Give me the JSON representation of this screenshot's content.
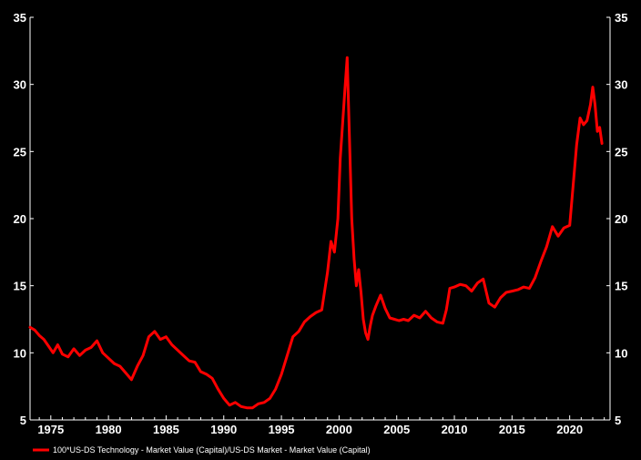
{
  "chart_data": {
    "type": "line",
    "title": "",
    "xlabel": "",
    "ylabel": "",
    "xlim": [
      1973.2,
      2023.5
    ],
    "ylim": [
      5,
      35
    ],
    "yticks": [
      5,
      10,
      15,
      20,
      25,
      30,
      35
    ],
    "xticks": [
      1975,
      1980,
      1985,
      1990,
      1995,
      2000,
      2005,
      2010,
      2015,
      2020
    ],
    "grid": false,
    "legend_position": "bottom-left",
    "background": "#000000",
    "axis_color": "#ffffff",
    "series": [
      {
        "name": "100*US-DS Technology - Market Value (Capital)/US-DS Market - Market Value (Capital)",
        "color": "#ff0000",
        "x": [
          1973.2,
          1973.6,
          1974.0,
          1974.4,
          1974.8,
          1975.2,
          1975.6,
          1976.0,
          1976.5,
          1977.0,
          1977.5,
          1978.0,
          1978.5,
          1979.0,
          1979.5,
          1980.0,
          1980.5,
          1981.0,
          1981.5,
          1982.0,
          1982.5,
          1983.0,
          1983.5,
          1984.0,
          1984.5,
          1985.0,
          1985.5,
          1986.0,
          1986.5,
          1987.0,
          1987.5,
          1988.0,
          1988.5,
          1989.0,
          1989.5,
          1990.0,
          1990.5,
          1991.0,
          1991.5,
          1992.0,
          1992.5,
          1993.0,
          1993.5,
          1994.0,
          1994.5,
          1995.0,
          1995.5,
          1996.0,
          1996.5,
          1997.0,
          1997.5,
          1998.0,
          1998.5,
          1999.0,
          1999.3,
          1999.6,
          1999.9,
          2000.1,
          2000.3,
          2000.5,
          2000.7,
          2000.9,
          2001.1,
          2001.3,
          2001.5,
          2001.7,
          2001.9,
          2002.1,
          2002.3,
          2002.5,
          2002.7,
          2002.9,
          2003.2,
          2003.6,
          2004.0,
          2004.4,
          2004.8,
          2005.2,
          2005.6,
          2006.0,
          2006.5,
          2007.0,
          2007.5,
          2008.0,
          2008.5,
          2009.0,
          2009.3,
          2009.6,
          2010.0,
          2010.5,
          2011.0,
          2011.5,
          2012.0,
          2012.5,
          2013.0,
          2013.5,
          2014.0,
          2014.5,
          2015.0,
          2015.5,
          2016.0,
          2016.5,
          2017.0,
          2017.5,
          2018.0,
          2018.5,
          2019.0,
          2019.5,
          2020.0,
          2020.3,
          2020.6,
          2020.9,
          2021.2,
          2021.5,
          2021.8,
          2022.0,
          2022.2,
          2022.4,
          2022.6,
          2022.8
        ],
        "y": [
          11.9,
          11.7,
          11.3,
          11.0,
          10.5,
          10.0,
          10.6,
          9.9,
          9.7,
          10.3,
          9.8,
          10.2,
          10.4,
          10.9,
          10.0,
          9.6,
          9.2,
          9.0,
          8.5,
          8.0,
          9.0,
          9.8,
          11.2,
          11.6,
          11.0,
          11.2,
          10.6,
          10.2,
          9.8,
          9.4,
          9.3,
          8.6,
          8.4,
          8.1,
          7.3,
          6.6,
          6.1,
          6.3,
          6.0,
          5.9,
          5.9,
          6.2,
          6.3,
          6.6,
          7.3,
          8.4,
          9.8,
          11.2,
          11.6,
          12.3,
          12.7,
          13.0,
          13.2,
          16.0,
          18.3,
          17.5,
          20.0,
          24.5,
          27.0,
          29.5,
          32.0,
          26.0,
          20.0,
          17.0,
          15.0,
          16.2,
          14.5,
          12.5,
          11.5,
          11.0,
          12.0,
          12.8,
          13.5,
          14.3,
          13.3,
          12.6,
          12.5,
          12.4,
          12.5,
          12.4,
          12.8,
          12.6,
          13.1,
          12.6,
          12.3,
          12.2,
          13.2,
          14.8,
          14.9,
          15.1,
          15.0,
          14.6,
          15.2,
          15.5,
          13.7,
          13.4,
          14.1,
          14.5,
          14.6,
          14.7,
          14.9,
          14.8,
          15.6,
          16.8,
          17.9,
          19.4,
          18.7,
          19.3,
          19.5,
          22.5,
          25.5,
          27.5,
          27.0,
          27.3,
          28.5,
          29.8,
          28.5,
          26.5,
          26.8,
          25.6
        ]
      }
    ]
  }
}
